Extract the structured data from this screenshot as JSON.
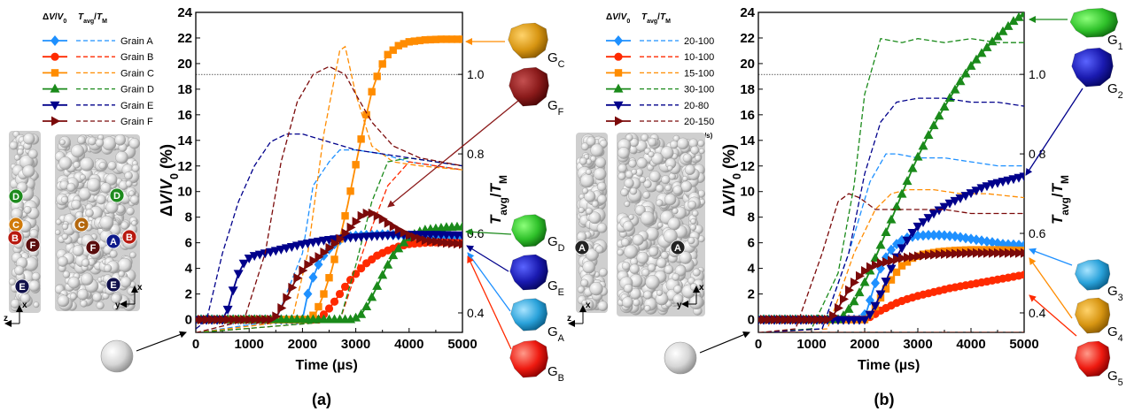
{
  "panels": [
    {
      "id": "a",
      "caption": "(a)",
      "chart_data": {
        "type": "line",
        "xlabel": "Time (µs)",
        "ylabel": "ΔV/V0 (%)",
        "y2label": "Tavg/TM",
        "xlim": [
          0,
          5000
        ],
        "ylim": [
          -1,
          24
        ],
        "y2lim": [
          0.351,
          1.156
        ],
        "x_ticks": [
          0,
          1000,
          2000,
          3000,
          4000,
          5000
        ],
        "y_ticks": [
          0,
          2,
          4,
          6,
          8,
          10,
          12,
          14,
          16,
          18,
          20,
          22,
          24
        ],
        "y2_ticks": [
          0.4,
          0.6,
          0.8,
          1.0
        ],
        "reference_line": 1.0,
        "legend": {
          "header_dv": "ΔV/V0",
          "header_t": "Tavg/TM",
          "entries": [
            "Grain A",
            "Grain B",
            "Grain C",
            "Grain D",
            "Grain E",
            "Grain F"
          ]
        },
        "series": [
          {
            "name": "Grain A",
            "color": "#1e90ff",
            "marker": "diamond",
            "x": [
              0,
              2000,
              2100,
              2200,
              2300,
              2400,
              2500,
              2600,
              2700,
              2800,
              2900,
              3000,
              3200,
              3500,
              3800,
              4100,
              4400,
              4700,
              5000
            ],
            "y": [
              0,
              0,
              2.0,
              3.3,
              4.3,
              5.0,
              5.5,
              5.9,
              6.2,
              6.4,
              6.5,
              6.55,
              6.6,
              6.65,
              6.6,
              6.55,
              6.5,
              6.45,
              6.4
            ],
            "t_x": [
              0,
              1500,
              2000,
              2200,
              2500,
              2700,
              3000,
              3500,
              4000,
              4500,
              5000
            ],
            "t_y": [
              0.35,
              0.38,
              0.55,
              0.72,
              0.78,
              0.81,
              0.81,
              0.8,
              0.78,
              0.77,
              0.76
            ]
          },
          {
            "name": "Grain B",
            "color": "#ff2a00",
            "marker": "circle",
            "x": [
              0,
              2300,
              2450,
              2600,
              2750,
              2900,
              3050,
              3200,
              3400,
              3600,
              3800,
              4000,
              4300,
              4600,
              5000
            ],
            "y": [
              0,
              0,
              0.6,
              1.4,
              2.3,
              3.1,
              3.8,
              4.4,
              5.0,
              5.4,
              5.7,
              5.9,
              6.0,
              6.05,
              6.0
            ],
            "t_x": [
              0,
              2700,
              3200,
              3600,
              4000,
              4500,
              5000
            ],
            "t_y": [
              0.35,
              0.38,
              0.58,
              0.72,
              0.78,
              0.77,
              0.76
            ]
          },
          {
            "name": "Grain C",
            "color": "#ff8c00",
            "marker": "square",
            "x": [
              0,
              2100,
              2250,
              2400,
              2550,
              2700,
              2850,
              3000,
              3150,
              3300,
              3450,
              3600,
              3800,
              4000,
              4300,
              4600,
              5000
            ],
            "y": [
              0,
              0,
              0.5,
              2.0,
              3.9,
              6.3,
              9.0,
              12.1,
              15.1,
              17.8,
              19.6,
              20.7,
              21.4,
              21.7,
              21.85,
              21.9,
              21.9
            ],
            "t_x": [
              0,
              1800,
              2100,
              2400,
              2700,
              2800,
              3000,
              3300,
              3700,
              4200,
              5000
            ],
            "t_y": [
              0.35,
              0.38,
              0.55,
              0.85,
              1.06,
              1.07,
              0.95,
              0.82,
              0.78,
              0.77,
              0.76
            ]
          },
          {
            "name": "Grain D",
            "color": "#1a8a1a",
            "marker": "triangle",
            "x": [
              0,
              2950,
              3100,
              3250,
              3400,
              3550,
              3700,
              3850,
              4000,
              4150,
              4300,
              4500,
              4700,
              5000
            ],
            "y": [
              0,
              0,
              0.4,
              1.3,
              2.6,
              3.9,
              5.0,
              5.8,
              6.4,
              6.8,
              7.0,
              7.1,
              7.2,
              7.25
            ],
            "t_x": [
              0,
              2700,
              3000,
              3300,
              3600,
              4000,
              4500,
              5000
            ],
            "t_y": [
              0.35,
              0.38,
              0.52,
              0.68,
              0.78,
              0.79,
              0.78,
              0.77
            ]
          },
          {
            "name": "Grain E",
            "color": "#00008b",
            "marker": "triangle-down",
            "x": [
              0,
              500,
              600,
              700,
              800,
              900,
              1000,
              1100,
              1200,
              1400,
              1700,
              2000,
              2400,
              2800,
              3200,
              3600,
              4000,
              4500,
              5000
            ],
            "y": [
              0,
              0,
              0.8,
              2.3,
              3.6,
              4.4,
              4.8,
              5.0,
              5.1,
              5.3,
              5.6,
              5.9,
              6.2,
              6.4,
              6.5,
              6.6,
              6.65,
              6.65,
              6.6
            ],
            "t_x": [
              0,
              200,
              500,
              800,
              1100,
              1400,
              1700,
              2000,
              2500,
              3000,
              3500,
              4000,
              4500,
              5000
            ],
            "t_y": [
              0.36,
              0.38,
              0.55,
              0.68,
              0.77,
              0.83,
              0.85,
              0.85,
              0.83,
              0.81,
              0.8,
              0.79,
              0.78,
              0.77
            ]
          },
          {
            "name": "Grain F",
            "color": "#7b0a0a",
            "marker": "triangle-right",
            "x": [
              0,
              1450,
              1550,
              1650,
              1750,
              1850,
              1950,
              2100,
              2300,
              2500,
              2700,
              2900,
              3100,
              3250,
              3450,
              3650,
              3850,
              4050,
              4300,
              4650,
              5000
            ],
            "y": [
              0,
              0,
              0.5,
              1.3,
              2.1,
              2.9,
              3.6,
              4.3,
              4.9,
              5.6,
              6.3,
              7.2,
              8.1,
              8.4,
              8.0,
              7.4,
              6.9,
              6.5,
              6.2,
              6.0,
              5.9
            ],
            "t_x": [
              0,
              900,
              1300,
              1600,
              1900,
              2200,
              2500,
              2800,
              3000,
              3300,
              3700,
              4200,
              5000
            ],
            "t_y": [
              0.35,
              0.38,
              0.55,
              0.78,
              0.93,
              1.0,
              1.02,
              1.0,
              0.95,
              0.88,
              0.82,
              0.79,
              0.77
            ]
          }
        ]
      },
      "grain_labels": {
        "G_A": "A",
        "G_B": "B",
        "G_C": "C",
        "G_D": "D",
        "G_E": "E",
        "G_F": "F"
      },
      "micro_labels": {
        "l1": "D",
        "l2": "C",
        "l3": "B",
        "l4": "F",
        "l5": "E",
        "r1": "D",
        "r2": "C",
        "r3": "A",
        "r4": "B",
        "r5": "F",
        "r6": "E"
      },
      "axis_letters": {
        "x1": "x",
        "z1": "z",
        "x2": "x",
        "y2": "y"
      }
    },
    {
      "id": "b",
      "caption": "(b)",
      "chart_data": {
        "type": "line",
        "xlabel": "Time (µs)",
        "ylabel": "ΔV/V0 (%)",
        "y2label": "Tavg/TM",
        "xlim": [
          0,
          5000
        ],
        "ylim": [
          -1,
          24
        ],
        "y2lim": [
          0.351,
          1.156
        ],
        "x_ticks": [
          0,
          1000,
          2000,
          3000,
          4000,
          5000
        ],
        "y_ticks": [
          0,
          2,
          4,
          6,
          8,
          10,
          12,
          14,
          16,
          18,
          20,
          22,
          24
        ],
        "y2_ticks": [
          0.4,
          0.6,
          0.8,
          1.0
        ],
        "reference_line": 1.0,
        "legend": {
          "header_dv": "ΔV/V0",
          "header_t": "Tavg/TM",
          "entries": [
            "20-100",
            "10-100",
            "15-100",
            "30-100",
            "20-80",
            "20-150"
          ],
          "unit": "(W-mm/s)"
        },
        "series": [
          {
            "name": "20-100",
            "color": "#1e90ff",
            "marker": "diamond",
            "x": [
              0,
              1950,
              2050,
              2150,
              2250,
              2350,
              2450,
              2550,
              2650,
              2800,
              3000,
              3200,
              3400,
              3700,
              4000,
              4300,
              4600,
              5000
            ],
            "y": [
              0,
              0,
              0.8,
              2.2,
              3.5,
              4.5,
              5.2,
              5.7,
              6.1,
              6.4,
              6.55,
              6.6,
              6.6,
              6.5,
              6.3,
              6.1,
              5.9,
              5.8
            ],
            "t_x": [
              0,
              1200,
              1700,
              2100,
              2400,
              2600,
              3000,
              3500,
              4000,
              4500,
              5000
            ],
            "t_y": [
              0.35,
              0.36,
              0.55,
              0.73,
              0.8,
              0.8,
              0.79,
              0.79,
              0.78,
              0.77,
              0.77
            ]
          },
          {
            "name": "10-100",
            "color": "#ff2a00",
            "marker": "circle",
            "x": [
              0,
              2000,
              2150,
              2300,
              2450,
              2600,
              2800,
              3000,
              3200,
              3400,
              3600,
              3800,
              4000,
              4200,
              4400,
              4600,
              4800,
              5000
            ],
            "y": [
              0,
              0,
              0.3,
              0.7,
              1.0,
              1.3,
              1.6,
              1.85,
              2.05,
              2.25,
              2.45,
              2.6,
              2.75,
              2.9,
              3.05,
              3.2,
              3.35,
              3.5
            ],
            "t_x": [
              0,
              5000
            ],
            "t_y": [
              0.35,
              0.35
            ]
          },
          {
            "name": "15-100",
            "color": "#ff8c00",
            "marker": "square",
            "x": [
              0,
              2000,
              2100,
              2200,
              2300,
              2400,
              2500,
              2600,
              2700,
              2900,
              3100,
              3400,
              3700,
              4000,
              4500,
              5000
            ],
            "y": [
              0,
              0,
              0.4,
              1.0,
              1.7,
              2.4,
              3.1,
              3.7,
              4.2,
              4.8,
              5.1,
              5.3,
              5.4,
              5.45,
              5.45,
              5.4
            ],
            "t_x": [
              0,
              1300,
              1800,
              2200,
              2500,
              2800,
              3300,
              3800,
              4300,
              5000
            ],
            "t_y": [
              0.35,
              0.36,
              0.55,
              0.66,
              0.7,
              0.71,
              0.71,
              0.7,
              0.7,
              0.69
            ]
          },
          {
            "name": "30-100",
            "color": "#1a8a1a",
            "marker": "triangle",
            "x": [
              0,
              1500,
              1600,
              1700,
              1800,
              1900,
              2000,
              2100,
              2200,
              2300,
              2400,
              2500,
              2600,
              2700,
              2800,
              2900,
              3000,
              3200,
              3400,
              3600,
              3800,
              4000,
              4200,
              4400,
              4600,
              4800,
              5000
            ],
            "y": [
              0,
              0,
              0.3,
              0.8,
              1.4,
              2.1,
              2.9,
              3.8,
              4.8,
              5.8,
              6.8,
              7.8,
              8.8,
              9.8,
              10.8,
              11.8,
              12.7,
              14.4,
              15.9,
              17.3,
              18.6,
              19.8,
              20.8,
              21.7,
              22.5,
              23.3,
              23.9
            ],
            "t_x": [
              0,
              1000,
              1500,
              1800,
              2000,
              2300,
              2700,
              3000,
              3500,
              4000,
              4500,
              5000
            ],
            "t_y": [
              0.35,
              0.36,
              0.5,
              0.72,
              0.95,
              1.09,
              1.08,
              1.09,
              1.08,
              1.09,
              1.08,
              1.08
            ]
          },
          {
            "name": "20-80",
            "color": "#00008b",
            "marker": "triangle-down",
            "x": [
              0,
              2000,
              2100,
              2200,
              2300,
              2400,
              2500,
              2600,
              2700,
              2800,
              2900,
              3000,
              3150,
              3300,
              3450,
              3600,
              3800,
              4000,
              4200,
              4400,
              4600,
              4800,
              5000
            ],
            "y": [
              0,
              0,
              0.4,
              1.1,
              2.0,
              3.0,
              4.0,
              4.9,
              5.6,
              6.2,
              6.8,
              7.3,
              7.8,
              8.3,
              8.7,
              9.1,
              9.5,
              9.9,
              10.3,
              10.6,
              10.8,
              11.0,
              11.2
            ],
            "t_x": [
              0,
              1200,
              1700,
              2000,
              2300,
              2600,
              3000,
              3500,
              4000,
              4500,
              5000
            ],
            "t_y": [
              0.35,
              0.36,
              0.55,
              0.75,
              0.88,
              0.93,
              0.94,
              0.94,
              0.93,
              0.93,
              0.92
            ]
          },
          {
            "name": "20-150",
            "color": "#7b0a0a",
            "marker": "triangle-right",
            "x": [
              0,
              1300,
              1400,
              1500,
              1600,
              1700,
              1800,
              1900,
              2000,
              2100,
              2300,
              2500,
              2700,
              2900,
              3100,
              3400,
              3700,
              4000,
              4300,
              4600,
              5000
            ],
            "y": [
              0,
              0,
              0.3,
              0.9,
              1.6,
              2.3,
              2.9,
              3.4,
              3.8,
              4.1,
              4.4,
              4.6,
              4.8,
              4.9,
              5.0,
              5.1,
              5.15,
              5.2,
              5.2,
              5.2,
              5.2
            ],
            "t_x": [
              0,
              700,
              1200,
              1500,
              1700,
              1900,
              2200,
              2600,
              3000,
              3500,
              4000,
              4500,
              5000
            ],
            "t_y": [
              0.35,
              0.36,
              0.55,
              0.68,
              0.7,
              0.69,
              0.66,
              0.66,
              0.66,
              0.66,
              0.65,
              0.65,
              0.65
            ]
          }
        ]
      },
      "grain_labels": {
        "G_1": "1",
        "G_2": "2",
        "G_3": "3",
        "G_4": "4",
        "G_5": "5"
      },
      "micro_labels": {
        "l1": "A",
        "r1": "A"
      },
      "axis_letters": {
        "x1": "x",
        "z1": "z",
        "x2": "x",
        "y2": "y"
      }
    }
  ]
}
